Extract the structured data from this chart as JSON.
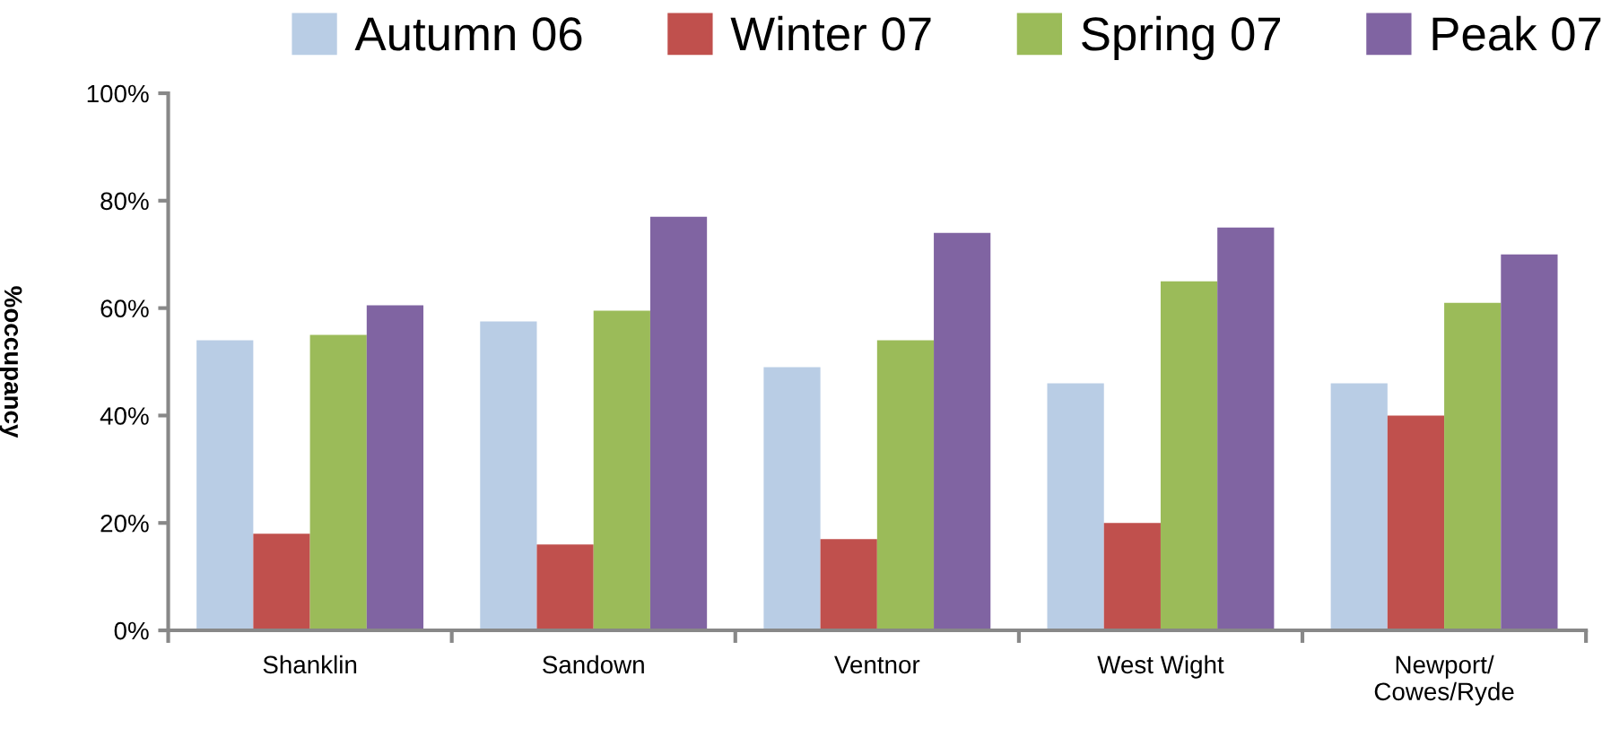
{
  "chart_data": {
    "type": "bar",
    "ylabel": "%occupancy",
    "categories": [
      "Shanklin",
      "Sandown",
      "Ventnor",
      "West Wight",
      "Newport/\nCowes/Ryde"
    ],
    "series": [
      {
        "name": "Autumn 06",
        "color": "#b9cde5",
        "values": [
          54,
          57.5,
          49,
          46,
          46
        ]
      },
      {
        "name": "Winter 07",
        "color": "#c0504d",
        "values": [
          18,
          16,
          17,
          20,
          40
        ]
      },
      {
        "name": "Spring 07",
        "color": "#9bbb59",
        "values": [
          55,
          59.5,
          54,
          65,
          61
        ]
      },
      {
        "name": "Peak 07",
        "color": "#8064a2",
        "values": [
          60.5,
          77,
          74,
          75,
          70
        ]
      }
    ],
    "ylim": [
      0,
      100
    ],
    "yticks": [
      {
        "value": 0,
        "label": "0%"
      },
      {
        "value": 20,
        "label": "20%"
      },
      {
        "value": 40,
        "label": "40%"
      },
      {
        "value": 60,
        "label": "60%"
      },
      {
        "value": 80,
        "label": "80%"
      },
      {
        "value": 100,
        "label": "100%"
      }
    ],
    "grid": false,
    "legend": "top"
  }
}
